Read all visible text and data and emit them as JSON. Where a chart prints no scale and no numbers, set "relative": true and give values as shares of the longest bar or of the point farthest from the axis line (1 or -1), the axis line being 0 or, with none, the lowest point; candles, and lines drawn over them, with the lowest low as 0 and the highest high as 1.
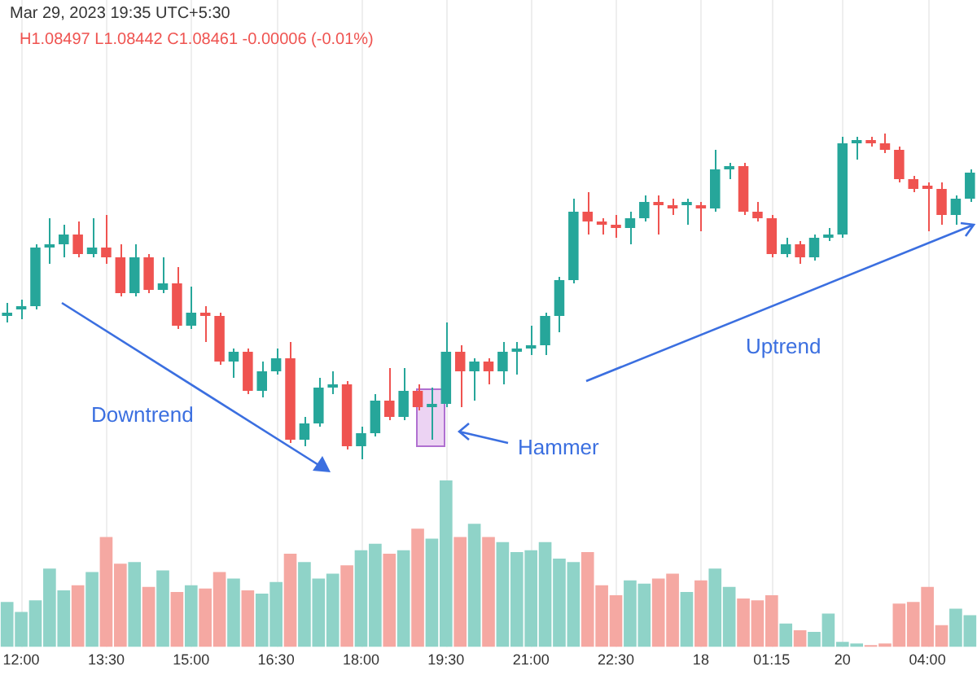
{
  "chart_data": [
    {
      "type": "candlestick",
      "relative": true,
      "tick_labels": false,
      "categories": [
        null,
        null,
        null,
        null,
        null,
        null,
        null,
        null,
        null,
        null,
        null,
        null,
        null,
        null,
        null,
        null,
        null,
        null,
        null,
        null,
        null,
        null,
        null,
        null,
        null,
        null,
        null,
        null,
        null,
        null,
        null,
        null,
        null,
        null,
        null,
        null,
        null,
        null,
        null,
        null,
        null,
        null,
        null,
        null,
        null,
        null,
        null,
        null,
        null,
        null,
        null,
        null,
        null,
        null,
        null,
        null,
        null,
        null,
        null,
        null,
        null,
        null,
        null,
        null,
        null,
        null,
        null,
        null,
        null
      ],
      "ohlc": [
        [
          0.44,
          0.48,
          0.42,
          0.45
        ],
        [
          0.46,
          0.49,
          0.43,
          0.47
        ],
        [
          0.47,
          0.66,
          0.46,
          0.65
        ],
        [
          0.65,
          0.74,
          0.6,
          0.66
        ],
        [
          0.66,
          0.72,
          0.62,
          0.69
        ],
        [
          0.69,
          0.73,
          0.62,
          0.63
        ],
        [
          0.63,
          0.74,
          0.62,
          0.65
        ],
        [
          0.65,
          0.75,
          0.6,
          0.62
        ],
        [
          0.62,
          0.66,
          0.5,
          0.51
        ],
        [
          0.51,
          0.66,
          0.5,
          0.62
        ],
        [
          0.62,
          0.63,
          0.51,
          0.52
        ],
        [
          0.52,
          0.62,
          0.51,
          0.54
        ],
        [
          0.54,
          0.59,
          0.4,
          0.41
        ],
        [
          0.41,
          0.53,
          0.4,
          0.45
        ],
        [
          0.45,
          0.47,
          0.36,
          0.44
        ],
        [
          0.44,
          0.45,
          0.29,
          0.3
        ],
        [
          0.3,
          0.34,
          0.25,
          0.33
        ],
        [
          0.33,
          0.34,
          0.2,
          0.21
        ],
        [
          0.21,
          0.3,
          0.19,
          0.27
        ],
        [
          0.27,
          0.34,
          0.26,
          0.31
        ],
        [
          0.31,
          0.36,
          0.05,
          0.06
        ],
        [
          0.06,
          0.13,
          0.04,
          0.11
        ],
        [
          0.11,
          0.25,
          0.1,
          0.22
        ],
        [
          0.22,
          0.27,
          0.2,
          0.23
        ],
        [
          0.23,
          0.24,
          0.03,
          0.04
        ],
        [
          0.04,
          0.1,
          0,
          0.08
        ],
        [
          0.08,
          0.2,
          0.07,
          0.18
        ],
        [
          0.18,
          0.28,
          0.12,
          0.13
        ],
        [
          0.13,
          0.28,
          0.12,
          0.21
        ],
        [
          0.21,
          0.23,
          0.15,
          0.16
        ],
        [
          0.16,
          0.22,
          0.06,
          0.17
        ],
        [
          0.17,
          0.42,
          0.16,
          0.33
        ],
        [
          0.33,
          0.35,
          0.16,
          0.27
        ],
        [
          0.27,
          0.31,
          0.18,
          0.3
        ],
        [
          0.3,
          0.31,
          0.23,
          0.27
        ],
        [
          0.27,
          0.36,
          0.23,
          0.33
        ],
        [
          0.33,
          0.36,
          0.26,
          0.34
        ],
        [
          0.34,
          0.41,
          0.32,
          0.35
        ],
        [
          0.35,
          0.45,
          0.32,
          0.44
        ],
        [
          0.44,
          0.56,
          0.39,
          0.55
        ],
        [
          0.55,
          0.8,
          0.54,
          0.76
        ],
        [
          0.76,
          0.82,
          0.69,
          0.73
        ],
        [
          0.73,
          0.74,
          0.69,
          0.72
        ],
        [
          0.72,
          0.75,
          0.68,
          0.71
        ],
        [
          0.71,
          0.76,
          0.66,
          0.74
        ],
        [
          0.74,
          0.81,
          0.73,
          0.79
        ],
        [
          0.79,
          0.81,
          0.69,
          0.78
        ],
        [
          0.78,
          0.8,
          0.75,
          0.77
        ],
        [
          0.78,
          0.8,
          0.72,
          0.79
        ],
        [
          0.78,
          0.79,
          0.7,
          0.77
        ],
        [
          0.77,
          0.95,
          0.76,
          0.89
        ],
        [
          0.89,
          0.91,
          0.86,
          0.9
        ],
        [
          0.9,
          0.91,
          0.75,
          0.76
        ],
        [
          0.76,
          0.79,
          0.73,
          0.74
        ],
        [
          0.74,
          0.75,
          0.62,
          0.63
        ],
        [
          0.63,
          0.68,
          0.62,
          0.66
        ],
        [
          0.66,
          0.67,
          0.6,
          0.62
        ],
        [
          0.62,
          0.69,
          0.61,
          0.68
        ],
        [
          0.68,
          0.71,
          0.67,
          0.69
        ],
        [
          0.69,
          0.99,
          0.68,
          0.97
        ],
        [
          0.97,
          0.99,
          0.92,
          0.98
        ],
        [
          0.98,
          0.99,
          0.96,
          0.97
        ],
        [
          0.97,
          1,
          0.94,
          0.95
        ],
        [
          0.95,
          0.96,
          0.85,
          0.86
        ],
        [
          0.86,
          0.87,
          0.82,
          0.83
        ],
        [
          0.84,
          0.85,
          0.7,
          0.83
        ],
        [
          0.83,
          0.85,
          0.72,
          0.75
        ],
        [
          0.75,
          0.81,
          0.72,
          0.8
        ],
        [
          0.8,
          0.89,
          0.79,
          0.88
        ]
      ],
      "colors": [
        "#26a69a",
        "#26a69a",
        "#26a69a",
        "#26a69a",
        "#26a69a",
        "#ef5350",
        "#26a69a",
        "#ef5350",
        "#ef5350",
        "#26a69a",
        "#ef5350",
        "#26a69a",
        "#ef5350",
        "#26a69a",
        "#ef5350",
        "#ef5350",
        "#26a69a",
        "#ef5350",
        "#26a69a",
        "#26a69a",
        "#ef5350",
        "#26a69a",
        "#26a69a",
        "#26a69a",
        "#ef5350",
        "#26a69a",
        "#26a69a",
        "#ef5350",
        "#26a69a",
        "#ef5350",
        "#26a69a",
        "#26a69a",
        "#ef5350",
        "#26a69a",
        "#ef5350",
        "#26a69a",
        "#26a69a",
        "#26a69a",
        "#26a69a",
        "#26a69a",
        "#26a69a",
        "#ef5350",
        "#ef5350",
        "#ef5350",
        "#26a69a",
        "#26a69a",
        "#ef5350",
        "#ef5350",
        "#26a69a",
        "#ef5350",
        "#26a69a",
        "#26a69a",
        "#ef5350",
        "#ef5350",
        "#ef5350",
        "#26a69a",
        "#ef5350",
        "#26a69a",
        "#26a69a",
        "#26a69a",
        "#26a69a",
        "#ef5350",
        "#ef5350",
        "#ef5350",
        "#ef5350",
        "#ef5350",
        "#ef5350",
        "#26a69a",
        "#26a69a"
      ],
      "annotations": [
        "Mar 29, 2023 19:35 UTC+5:30",
        "H1.08497 L1.08442 C1.08461 -0.00006 (-0.01%)",
        "Downtrend",
        "Hammer",
        "Uptrend"
      ]
    },
    {
      "type": "bar",
      "relative": true,
      "grid": "x",
      "categories": [
        null,
        "12:00",
        null,
        null,
        null,
        null,
        null,
        "13:30",
        null,
        null,
        null,
        null,
        null,
        "15:00",
        null,
        null,
        null,
        null,
        null,
        "16:30",
        null,
        null,
        null,
        null,
        null,
        "18:00",
        null,
        null,
        null,
        null,
        null,
        "19:30",
        null,
        null,
        null,
        null,
        null,
        "21:00",
        null,
        null,
        null,
        null,
        null,
        "22:30",
        null,
        null,
        null,
        null,
        null,
        "18",
        null,
        null,
        null,
        null,
        "01:15",
        null,
        null,
        null,
        null,
        "20",
        null,
        null,
        null,
        null,
        null,
        "04:00",
        null,
        null,
        null
      ],
      "values": [
        0.27,
        0.21,
        0.28,
        0.47,
        0.34,
        0.37,
        0.45,
        0.66,
        0.5,
        0.51,
        0.36,
        0.46,
        0.33,
        0.37,
        0.35,
        0.45,
        0.41,
        0.34,
        0.32,
        0.39,
        0.56,
        0.51,
        0.41,
        0.44,
        0.49,
        0.58,
        0.62,
        0.56,
        0.58,
        0.71,
        0.65,
        1,
        0.66,
        0.74,
        0.66,
        0.63,
        0.57,
        0.58,
        0.63,
        0.53,
        0.51,
        0.57,
        0.37,
        0.31,
        0.4,
        0.38,
        0.41,
        0.44,
        0.33,
        0.4,
        0.47,
        0.36,
        0.29,
        0.28,
        0.31,
        0.14,
        0.1,
        0.09,
        0.2,
        0.03,
        0.02,
        0.01,
        0.02,
        0.26,
        0.27,
        0.36,
        0.13,
        0.23,
        0.19
      ],
      "colors": [
        "#8fd3c8",
        "#8fd3c8",
        "#8fd3c8",
        "#8fd3c8",
        "#8fd3c8",
        "#f5a8a2",
        "#8fd3c8",
        "#f5a8a2",
        "#f5a8a2",
        "#8fd3c8",
        "#f5a8a2",
        "#8fd3c8",
        "#f5a8a2",
        "#8fd3c8",
        "#f5a8a2",
        "#f5a8a2",
        "#8fd3c8",
        "#f5a8a2",
        "#8fd3c8",
        "#8fd3c8",
        "#f5a8a2",
        "#8fd3c8",
        "#8fd3c8",
        "#8fd3c8",
        "#f5a8a2",
        "#8fd3c8",
        "#8fd3c8",
        "#f5a8a2",
        "#8fd3c8",
        "#f5a8a2",
        "#8fd3c8",
        "#8fd3c8",
        "#f5a8a2",
        "#8fd3c8",
        "#f5a8a2",
        "#8fd3c8",
        "#8fd3c8",
        "#8fd3c8",
        "#8fd3c8",
        "#8fd3c8",
        "#8fd3c8",
        "#f5a8a2",
        "#f5a8a2",
        "#f5a8a2",
        "#8fd3c8",
        "#8fd3c8",
        "#f5a8a2",
        "#f5a8a2",
        "#8fd3c8",
        "#f5a8a2",
        "#8fd3c8",
        "#8fd3c8",
        "#f5a8a2",
        "#f5a8a2",
        "#f5a8a2",
        "#8fd3c8",
        "#f5a8a2",
        "#8fd3c8",
        "#8fd3c8",
        "#8fd3c8",
        "#8fd3c8",
        "#f5a8a2",
        "#f5a8a2",
        "#f5a8a2",
        "#f5a8a2",
        "#f5a8a2",
        "#f5a8a2",
        "#8fd3c8",
        "#8fd3c8"
      ]
    }
  ]
}
